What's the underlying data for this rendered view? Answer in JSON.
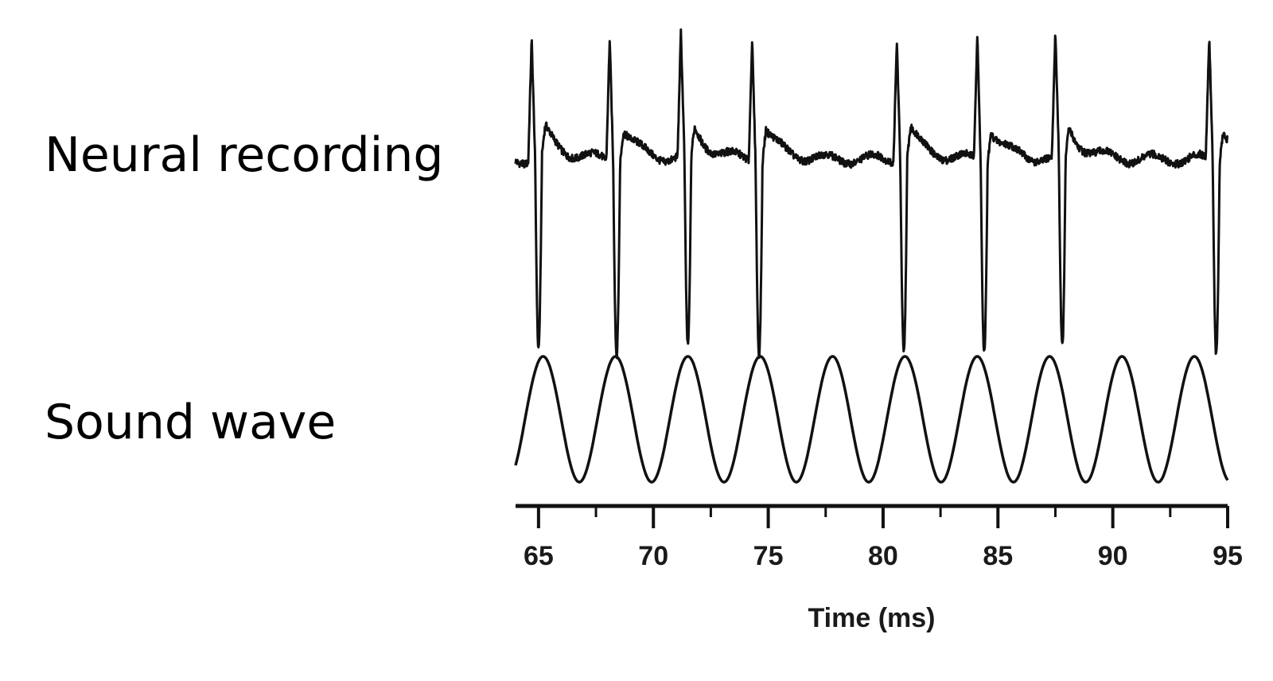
{
  "labels": {
    "neural": "Neural recording",
    "sound": "Sound wave"
  },
  "chart_data": {
    "type": "line",
    "xlabel": "Time (ms)",
    "xlim": [
      64,
      95
    ],
    "x_ticks_major": [
      65,
      70,
      75,
      80,
      85,
      90,
      95
    ],
    "x_ticks_minor": [
      67.5,
      72.5,
      77.5,
      82.5,
      87.5,
      92.5
    ],
    "grid": false,
    "series": [
      {
        "name": "Neural recording",
        "spike_times_ms": [
          64.8,
          68.2,
          71.3,
          74.4,
          80.7,
          84.2,
          87.6,
          94.3
        ],
        "baseline": 0,
        "spike_peak": 1.0,
        "spike_trough": -1.55,
        "afterpotential": 0.3
      },
      {
        "name": "Sound wave",
        "waveform": "sine",
        "period_ms": 3.15,
        "first_peak_ms": 65.2,
        "amplitude": 1
      }
    ],
    "color": "#111111"
  }
}
